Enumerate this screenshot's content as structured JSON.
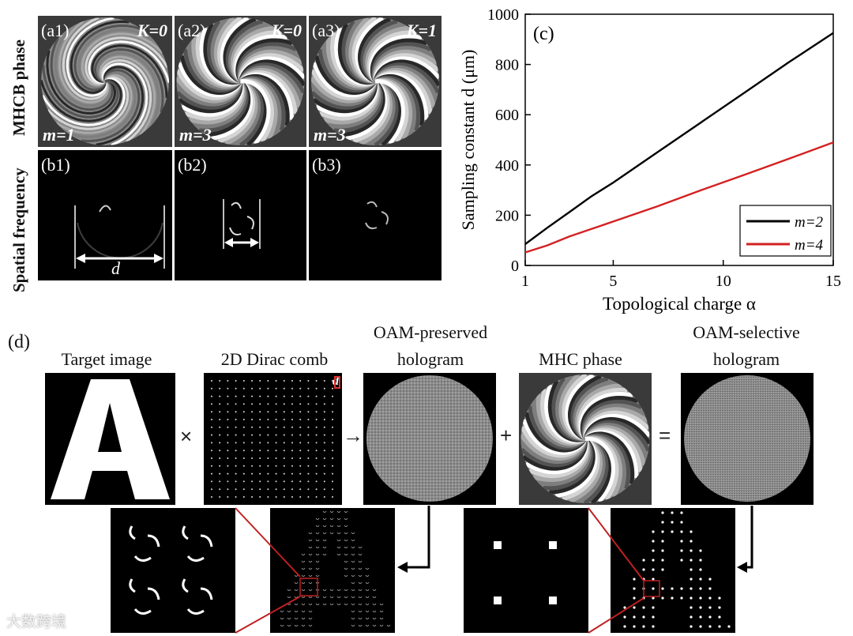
{
  "figure": {
    "row_a_side_label": "MHCB phase",
    "row_b_side_label": "Spatial frequency",
    "panels_a": [
      {
        "tag": "(a1)",
        "k": "K=0",
        "m": "m=1",
        "arms": 1
      },
      {
        "tag": "(a2)",
        "k": "K=0",
        "m": "m=3",
        "arms": 3
      },
      {
        "tag": "(a3)",
        "k": "K=1",
        "m": "m=3",
        "arms": 3
      }
    ],
    "panels_b": [
      {
        "tag": "(b1)",
        "arrow_label": "d"
      },
      {
        "tag": "(b2)"
      },
      {
        "tag": "(b3)"
      }
    ],
    "panel_c_tag": "(c)",
    "panel_d_tag": "(d)",
    "d_row": {
      "target_caption": "Target image",
      "target_letter": "A",
      "comb_caption": "2D Dirac comb",
      "comb_d_label": "d",
      "oam_preserved_caption_1": "OAM-preserved",
      "oam_preserved_caption_2": "hologram",
      "mhc_caption": "MHC phase",
      "oam_selective_caption_1": "OAM-selective",
      "oam_selective_caption_2": "hologram",
      "op_times": "×",
      "op_arrow": "→",
      "op_plus": "+",
      "op_equals": "="
    },
    "watermark": "大数跨境"
  },
  "chart_data": {
    "type": "line",
    "title": "",
    "xlabel": "Topological charge α",
    "ylabel": "Sampling constant d (μm)",
    "xlim": [
      1,
      15
    ],
    "ylim": [
      0,
      1000
    ],
    "xticks": [
      1,
      5,
      10,
      15
    ],
    "yticks": [
      0,
      200,
      400,
      600,
      800,
      1000
    ],
    "grid": false,
    "legend_position": "bottom-right",
    "series": [
      {
        "name": "m=2",
        "color": "#000000",
        "x": [
          1,
          2,
          3,
          4,
          5,
          7,
          9,
          11,
          13,
          15
        ],
        "y": [
          85,
          150,
          212,
          275,
          330,
          450,
          570,
          690,
          810,
          925
        ]
      },
      {
        "name": "m=4",
        "color": "#d42020",
        "x": [
          1,
          2,
          3,
          4,
          5,
          7,
          9,
          11,
          13,
          15
        ],
        "y": [
          52,
          80,
          115,
          145,
          175,
          235,
          300,
          362,
          425,
          490
        ]
      }
    ]
  }
}
